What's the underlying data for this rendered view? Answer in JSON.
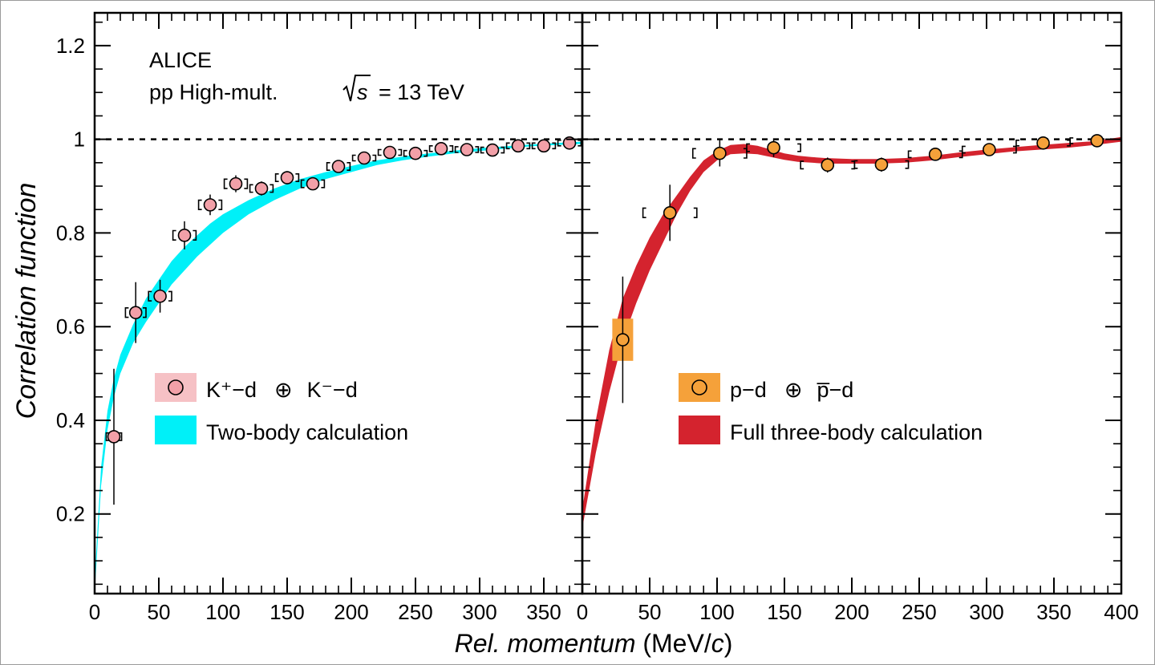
{
  "chart_data": {
    "type": "scatter",
    "ylabel": "Correlation function",
    "xlabel_main": "Rel. momentum",
    "xlabel_unit_pre": " (MeV/",
    "xlabel_unit_c": "c",
    "xlabel_unit_post": ")",
    "ylim": [
      0.03,
      1.27
    ],
    "ytick_labels": [
      "0.2",
      "0.4",
      "0.6",
      "0.8",
      "1",
      "1.2"
    ],
    "grid": false,
    "header": {
      "line1": "ALICE",
      "line2": "pp High-mult.",
      "energy": "= 13 TeV",
      "sqrt_s": "s"
    },
    "panels": [
      {
        "xlim": [
          0,
          380
        ],
        "xtick_labels": [
          "0",
          "50",
          "100",
          "150",
          "200",
          "250",
          "300",
          "350"
        ],
        "xticks": [
          0,
          50,
          100,
          150,
          200,
          250,
          300,
          350
        ],
        "legend": {
          "placement": "bottom-right",
          "entry1_label": "K⁺−d",
          "entry1_oplus": "⊕",
          "entry1_conj": "K⁻−d",
          "entry2_label": "Two-body calculation"
        },
        "series": [
          {
            "kind": "data",
            "marker_color": "#f2a0a8",
            "syst_box_color": "#f6c1c5",
            "x": [
              15,
              32,
              51,
              70,
              90,
              110,
              130,
              150,
              170,
              190,
              210,
              230,
              250,
              270,
              290,
              310,
              330,
              350,
              370
            ],
            "y": [
              0.365,
              0.63,
              0.665,
              0.795,
              0.86,
              0.905,
              0.895,
              0.918,
              0.905,
              0.942,
              0.96,
              0.972,
              0.97,
              0.98,
              0.978,
              0.977,
              0.986,
              0.986,
              0.992
            ],
            "yerr": [
              0.145,
              0.065,
              0.035,
              0.03,
              0.022,
              0.018,
              0.015,
              0.014,
              0.013,
              0.012,
              0.011,
              0.01,
              0.01,
              0.009,
              0.009,
              0.008,
              0.008,
              0.008,
              0.008
            ],
            "xsys": [
              6,
              8,
              9,
              9,
              9,
              9,
              9,
              9,
              9,
              9,
              9,
              9,
              9,
              9,
              9,
              9,
              9,
              9,
              9
            ],
            "ysys": [
              0.008,
              0.01,
              0.01,
              0.01,
              0.01,
              0.01,
              0.008,
              0.008,
              0.008,
              0.008,
              0.006,
              0.006,
              0.006,
              0.006,
              0.006,
              0.006,
              0.006,
              0.006,
              0.006
            ]
          },
          {
            "kind": "band",
            "color": "#00f0f8",
            "x": [
              0,
              5,
              10,
              15,
              20,
              30,
              40,
              50,
              60,
              70,
              80,
              90,
              100,
              120,
              140,
              160,
              180,
              200,
              220,
              240,
              260,
              280,
              300,
              320,
              340,
              360,
              380
            ],
            "y_low": [
              0.03,
              0.26,
              0.38,
              0.45,
              0.5,
              0.565,
              0.61,
              0.65,
              0.69,
              0.72,
              0.75,
              0.775,
              0.8,
              0.84,
              0.87,
              0.895,
              0.915,
              0.93,
              0.945,
              0.955,
              0.963,
              0.97,
              0.975,
              0.98,
              0.985,
              0.988,
              0.99
            ],
            "y_high": [
              0.06,
              0.3,
              0.42,
              0.49,
              0.54,
              0.605,
              0.66,
              0.7,
              0.74,
              0.77,
              0.795,
              0.82,
              0.84,
              0.87,
              0.895,
              0.915,
              0.93,
              0.943,
              0.955,
              0.963,
              0.97,
              0.976,
              0.981,
              0.985,
              0.989,
              0.992,
              0.995
            ]
          }
        ]
      },
      {
        "xlim": [
          0,
          400
        ],
        "xtick_labels": [
          "0",
          "50",
          "100",
          "150",
          "200",
          "250",
          "300",
          "350",
          "400"
        ],
        "xticks": [
          0,
          50,
          100,
          150,
          200,
          250,
          300,
          350,
          400
        ],
        "legend": {
          "placement": "bottom-right",
          "entry1_label": "p−d",
          "entry1_oplus": "⊕",
          "entry1_conj": "p̅−d",
          "entry2_label": "Full three-body calculation"
        },
        "series": [
          {
            "kind": "data",
            "marker_color": "#f5a13a",
            "syst_box_color": "#f5a13a",
            "x": [
              30,
              65,
              102,
              142,
              182,
              222,
              262,
              302,
              342,
              382
            ],
            "y": [
              0.572,
              0.843,
              0.97,
              0.982,
              0.945,
              0.946,
              0.968,
              0.978,
              0.992,
              0.997
            ],
            "yerr": [
              0.135,
              0.06,
              0.028,
              0.02,
              0.016,
              0.015,
              0.013,
              0.011,
              0.01,
              0.009
            ],
            "xsys": [
              0,
              20,
              20,
              20,
              20,
              20,
              20,
              20,
              20,
              20
            ],
            "ysys": [
              0.045,
              0.01,
              0.01,
              0.008,
              0.008,
              0.008,
              0.007,
              0.007,
              0.006,
              0.006
            ]
          },
          {
            "kind": "band",
            "color": "#d4232e",
            "x": [
              0,
              10,
              20,
              30,
              40,
              50,
              60,
              70,
              80,
              90,
              100,
              110,
              120,
              130,
              140,
              150,
              160,
              170,
              180,
              200,
              220,
              240,
              260,
              280,
              300,
              320,
              340,
              360,
              380,
              400
            ],
            "y_low": [
              0.17,
              0.33,
              0.46,
              0.57,
              0.65,
              0.72,
              0.78,
              0.84,
              0.89,
              0.93,
              0.955,
              0.968,
              0.97,
              0.968,
              0.962,
              0.956,
              0.952,
              0.95,
              0.948,
              0.948,
              0.948,
              0.95,
              0.955,
              0.962,
              0.968,
              0.974,
              0.978,
              0.982,
              0.988,
              0.995
            ],
            "y_high": [
              0.21,
              0.4,
              0.55,
              0.66,
              0.73,
              0.79,
              0.84,
              0.88,
              0.92,
              0.955,
              0.975,
              0.988,
              0.99,
              0.986,
              0.978,
              0.97,
              0.965,
              0.962,
              0.96,
              0.958,
              0.958,
              0.96,
              0.965,
              0.972,
              0.978,
              0.983,
              0.988,
              0.992,
              0.996,
              1.005
            ]
          }
        ]
      }
    ]
  }
}
